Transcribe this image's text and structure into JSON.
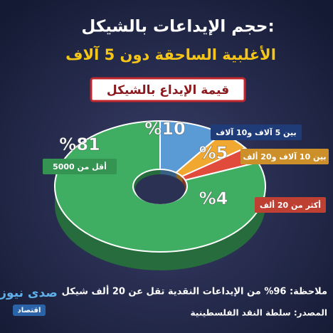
{
  "chart_data": {
    "type": "pie",
    "donut": true,
    "title": "حجم الإيداعات بالشيكل:",
    "subtitle": "الأغلبية الساحقة دون 5 آلاف",
    "legend_title": "قيمة الإيداع بالشيكل",
    "categories": [
      "بين 5 آلاف و10 آلاف",
      "بين 10 آلاف و20 ألف",
      "أكثر من 20 ألف",
      "أقل من 5000"
    ],
    "values": [
      10,
      5,
      4,
      81
    ],
    "value_labels": [
      "%10",
      "%5",
      "%4",
      "%81"
    ],
    "colors": [
      "#5b9bd5",
      "#f0a830",
      "#e04b3c",
      "#3fae62"
    ],
    "note": "ملاحظة: 96% من الإيداعات النقدية تقل عن 20 ألف شيكل",
    "source": "المصدر: سلطة النقد الفلسطينية"
  },
  "logo": {
    "name": "صدى نيوز",
    "section": "اقتصاد"
  }
}
